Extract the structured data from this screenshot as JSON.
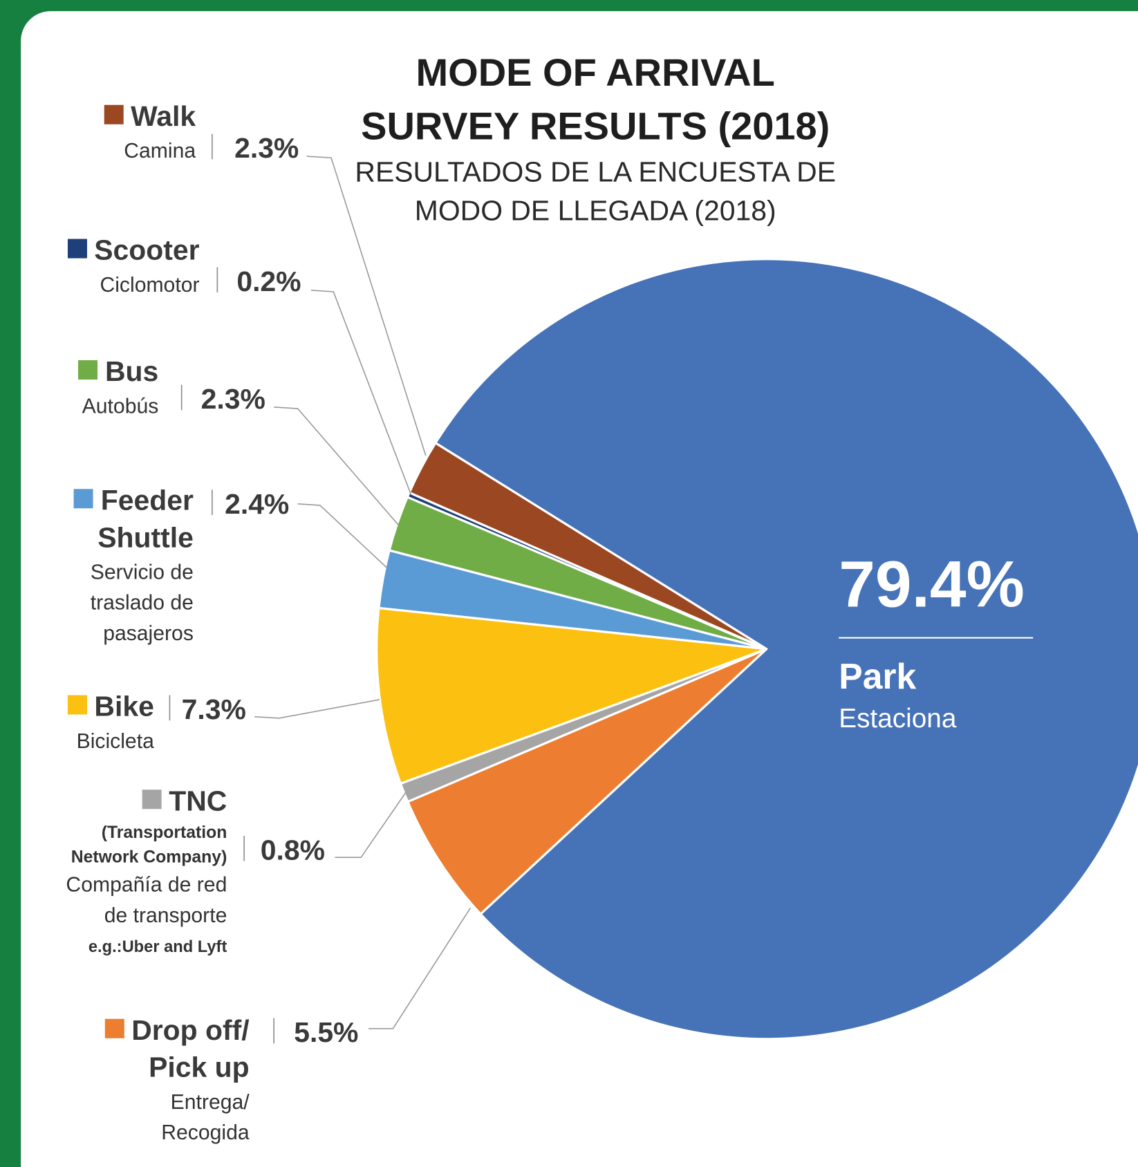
{
  "chart_data": {
    "type": "pie",
    "title": "MODE OF ARRIVAL SURVEY RESULTS (2018)",
    "subtitle": "RESULTADOS DE LA ENCUESTA DE MODO DE LLEGADA (2018)",
    "categories": [
      "Walk",
      "Scooter",
      "Bus",
      "Feeder Shuttle",
      "Bike",
      "TNC",
      "Drop off/ Pick up",
      "Park"
    ],
    "sublabels": [
      "Camina",
      "Ciclomotor",
      "Autobús",
      "Servicio de traslado de pasajeros",
      "Bicicleta",
      "Compañía de red de transporte",
      "Entrega/ Recogida",
      "Estaciona"
    ],
    "annotations": [
      "(Transportation Network Company)",
      "e.g.:Uber and Lyft"
    ],
    "values": [
      2.3,
      0.2,
      2.3,
      2.4,
      7.3,
      0.8,
      5.5,
      79.4
    ],
    "value_labels": [
      "2.3%",
      "0.2%",
      "2.3%",
      "2.4%",
      "7.3%",
      "0.8%",
      "5.5%",
      "79.4%"
    ],
    "colors": [
      "#9b4722",
      "#1f3f7a",
      "#70ad47",
      "#5b9bd5",
      "#fcc010",
      "#a5a5a5",
      "#ed7d31",
      "#4672b8"
    ]
  }
}
